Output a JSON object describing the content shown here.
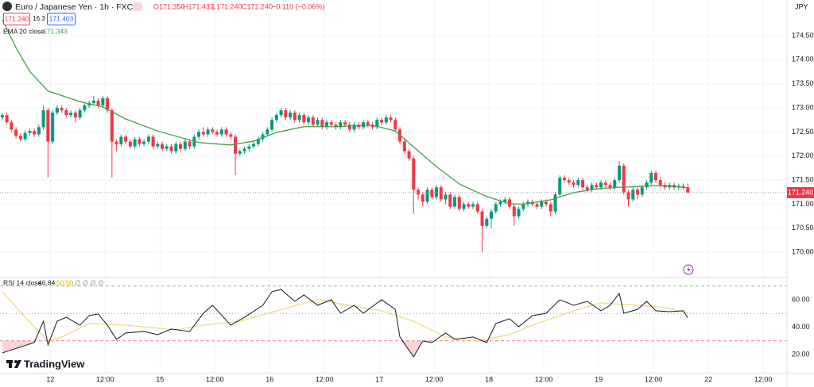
{
  "watermark": "TradingView",
  "chart_data": [
    {
      "type": "candlestick",
      "title": "Euro / Japanese Yen · 1h · FXCM",
      "bid": "171.240",
      "spread": "16.3",
      "ask": "171.403",
      "ohlc_labels": [
        "O171.350",
        "H171.432",
        "L171.240",
        "C171.240"
      ],
      "change_label": "−0.110 (−0.06%)",
      "currency": "JPY",
      "up_color": "#089981",
      "down_color": "#f23645",
      "open": [
        172.8,
        172.85,
        172.7,
        172.55,
        172.42,
        172.35,
        172.48,
        172.52,
        172.45,
        172.6,
        172.95,
        172.3,
        172.9,
        173.0,
        172.95,
        172.85,
        172.9,
        172.8,
        172.95,
        173.05,
        173.1,
        173.15,
        173.05,
        173.2,
        172.95,
        172.3,
        172.25,
        172.4,
        172.3,
        172.2,
        172.35,
        172.25,
        172.3,
        172.4,
        172.2,
        172.25,
        172.15,
        172.2,
        172.1,
        172.25,
        172.15,
        172.3,
        172.2,
        172.4,
        172.5,
        172.45,
        172.55,
        172.5,
        172.45,
        172.55,
        172.45,
        172.4,
        172.05,
        172.1,
        172.15,
        172.2,
        172.25,
        172.35,
        172.45,
        172.55,
        172.75,
        172.85,
        172.95,
        172.8,
        172.9,
        172.75,
        172.85,
        172.7,
        172.8,
        172.65,
        172.75,
        172.6,
        172.7,
        172.65,
        172.6,
        172.7,
        172.65,
        172.55,
        172.65,
        172.6,
        172.7,
        172.65,
        172.6,
        172.75,
        172.7,
        172.8,
        172.75,
        172.55,
        172.3,
        172.1,
        171.95,
        171.3,
        171.2,
        171.05,
        171.3,
        171.15,
        171.35,
        171.1,
        171.2,
        170.95,
        171.15,
        170.9,
        171.0,
        170.95,
        171.0,
        170.85,
        170.55,
        170.7,
        170.85,
        171.0,
        171.05,
        171.1,
        170.95,
        170.75,
        170.9,
        171.0,
        171.05,
        171.0,
        170.95,
        171.05,
        171.0,
        170.85,
        171.2,
        171.55,
        171.5,
        171.45,
        171.4,
        171.5,
        171.35,
        171.3,
        171.4,
        171.35,
        171.45,
        171.4,
        171.35,
        171.5,
        171.8,
        171.25,
        171.1,
        171.3,
        171.2,
        171.35,
        171.45,
        171.65,
        171.5,
        171.4,
        171.35,
        171.4,
        171.35,
        171.38,
        171.35
      ],
      "high": [
        172.9,
        172.9,
        172.75,
        172.6,
        172.47,
        172.53,
        172.57,
        172.57,
        172.65,
        173.05,
        173.0,
        172.95,
        173.05,
        173.05,
        173.0,
        172.95,
        172.95,
        173.0,
        173.1,
        173.15,
        173.25,
        173.2,
        173.25,
        173.25,
        173.0,
        172.35,
        172.45,
        172.45,
        172.35,
        172.4,
        172.4,
        172.35,
        172.45,
        172.45,
        172.3,
        172.3,
        172.25,
        172.25,
        172.3,
        172.3,
        172.35,
        172.35,
        172.45,
        172.55,
        172.6,
        172.6,
        172.6,
        172.55,
        172.6,
        172.6,
        172.5,
        172.45,
        172.15,
        172.2,
        172.25,
        172.3,
        172.4,
        172.5,
        172.6,
        172.8,
        172.9,
        173.0,
        173.0,
        172.95,
        172.95,
        172.9,
        172.9,
        172.85,
        172.85,
        172.8,
        172.8,
        172.75,
        172.75,
        172.7,
        172.75,
        172.75,
        172.7,
        172.7,
        172.7,
        172.75,
        172.75,
        172.7,
        172.8,
        172.8,
        172.85,
        172.85,
        172.8,
        172.6,
        172.35,
        172.15,
        172.0,
        171.35,
        171.25,
        171.35,
        171.35,
        171.4,
        171.4,
        171.25,
        171.25,
        171.2,
        171.2,
        171.05,
        171.05,
        171.05,
        171.05,
        170.9,
        170.75,
        170.9,
        171.05,
        171.1,
        171.15,
        171.15,
        171.0,
        170.95,
        171.05,
        171.1,
        171.1,
        171.05,
        171.1,
        171.1,
        171.05,
        171.25,
        171.6,
        171.6,
        171.55,
        171.5,
        171.55,
        171.55,
        171.4,
        171.45,
        171.45,
        171.5,
        171.5,
        171.45,
        171.55,
        171.9,
        171.85,
        171.3,
        171.35,
        171.35,
        171.4,
        171.5,
        171.7,
        171.7,
        171.55,
        171.45,
        171.45,
        171.45,
        171.43,
        171.43,
        171.432
      ],
      "low": [
        172.75,
        172.65,
        172.5,
        172.37,
        172.3,
        172.3,
        172.43,
        172.4,
        172.4,
        172.55,
        171.55,
        172.25,
        172.85,
        172.9,
        172.8,
        172.8,
        172.7,
        172.75,
        172.9,
        173.0,
        173.05,
        173.0,
        173.0,
        172.9,
        171.55,
        172.1,
        172.2,
        172.25,
        172.15,
        172.15,
        172.2,
        172.2,
        172.25,
        172.15,
        172.15,
        172.1,
        172.1,
        172.05,
        172.05,
        172.1,
        172.1,
        172.15,
        172.15,
        172.35,
        172.4,
        172.4,
        172.45,
        172.4,
        172.4,
        172.4,
        172.35,
        171.6,
        172.0,
        172.05,
        172.1,
        172.15,
        172.2,
        172.3,
        172.4,
        172.5,
        172.7,
        172.8,
        172.75,
        172.75,
        172.7,
        172.7,
        172.65,
        172.65,
        172.6,
        172.6,
        172.55,
        172.55,
        172.6,
        172.55,
        172.55,
        172.6,
        172.5,
        172.5,
        172.55,
        172.55,
        172.6,
        172.55,
        172.55,
        172.65,
        172.65,
        172.7,
        172.5,
        172.25,
        172.05,
        171.9,
        170.8,
        171.1,
        170.95,
        171.0,
        171.1,
        171.1,
        171.05,
        171.0,
        170.9,
        170.9,
        170.85,
        170.85,
        170.9,
        170.9,
        170.8,
        170.0,
        170.5,
        170.5,
        170.8,
        170.95,
        171.0,
        170.9,
        170.55,
        170.7,
        170.85,
        170.95,
        170.95,
        170.9,
        170.9,
        170.95,
        170.75,
        170.8,
        171.15,
        171.45,
        171.4,
        171.35,
        171.35,
        171.3,
        171.25,
        171.25,
        171.3,
        171.3,
        171.35,
        171.3,
        171.3,
        171.45,
        171.2,
        170.95,
        171.05,
        171.1,
        171.15,
        171.3,
        171.4,
        171.45,
        171.35,
        171.3,
        171.3,
        171.3,
        171.3,
        171.3,
        171.24
      ],
      "close": [
        172.85,
        172.7,
        172.55,
        172.42,
        172.35,
        172.48,
        172.52,
        172.45,
        172.6,
        172.95,
        172.3,
        172.9,
        173.0,
        172.95,
        172.85,
        172.9,
        172.8,
        172.95,
        173.05,
        173.1,
        173.15,
        173.05,
        173.2,
        172.95,
        172.3,
        172.25,
        172.4,
        172.3,
        172.2,
        172.35,
        172.25,
        172.3,
        172.4,
        172.2,
        172.25,
        172.15,
        172.2,
        172.1,
        172.25,
        172.15,
        172.3,
        172.2,
        172.4,
        172.5,
        172.45,
        172.55,
        172.5,
        172.45,
        172.55,
        172.45,
        172.4,
        172.05,
        172.1,
        172.15,
        172.2,
        172.25,
        172.35,
        172.45,
        172.55,
        172.75,
        172.85,
        172.95,
        172.8,
        172.9,
        172.75,
        172.85,
        172.7,
        172.8,
        172.65,
        172.75,
        172.6,
        172.7,
        172.65,
        172.6,
        172.7,
        172.65,
        172.55,
        172.65,
        172.6,
        172.7,
        172.65,
        172.6,
        172.75,
        172.7,
        172.8,
        172.75,
        172.55,
        172.3,
        172.1,
        171.95,
        171.3,
        171.2,
        171.05,
        171.3,
        171.15,
        171.35,
        171.1,
        171.2,
        170.95,
        171.15,
        170.9,
        171.0,
        170.95,
        171.0,
        170.85,
        170.55,
        170.7,
        170.85,
        171.0,
        171.05,
        171.1,
        170.95,
        170.75,
        170.9,
        171.0,
        171.05,
        171.0,
        170.95,
        171.05,
        171.0,
        170.85,
        171.2,
        171.55,
        171.5,
        171.45,
        171.4,
        171.5,
        171.35,
        171.3,
        171.4,
        171.35,
        171.45,
        171.4,
        171.35,
        171.5,
        171.8,
        171.25,
        171.1,
        171.3,
        171.2,
        171.35,
        171.45,
        171.65,
        171.5,
        171.4,
        171.35,
        171.4,
        171.35,
        171.38,
        171.35,
        171.24
      ],
      "series": [
        {
          "name": "EMA 20 close",
          "color": "#43a047",
          "value_label": "171.343",
          "x": [
            0,
            3,
            6,
            10,
            17,
            22,
            27,
            34,
            43,
            50,
            55,
            60,
            66,
            73,
            81,
            86,
            90,
            95,
            100,
            106,
            111,
            114,
            120,
            125,
            130,
            135,
            140,
            144,
            150
          ],
          "values": [
            174.83,
            174.25,
            173.76,
            173.35,
            173.13,
            173.02,
            172.77,
            172.52,
            172.28,
            172.23,
            172.31,
            172.49,
            172.61,
            172.61,
            172.64,
            172.52,
            172.19,
            171.78,
            171.42,
            171.16,
            171.01,
            171.0,
            171.09,
            171.24,
            171.32,
            171.35,
            171.37,
            171.39,
            171.343
          ]
        }
      ],
      "last_price": {
        "value": 171.24,
        "label": "171.240"
      },
      "xlim": [
        -0.5,
        171.7
      ],
      "xticks": [
        {
          "value": 10.5,
          "label": "12"
        },
        {
          "value": 22.5,
          "label": "12:00"
        },
        {
          "value": 34.5,
          "label": "15"
        },
        {
          "value": 46.5,
          "label": "12:00"
        },
        {
          "value": 58.5,
          "label": "16"
        },
        {
          "value": 70.5,
          "label": "12:00"
        },
        {
          "value": 82.5,
          "label": "17"
        },
        {
          "value": 94.5,
          "label": "12:00"
        },
        {
          "value": 106.5,
          "label": "18"
        },
        {
          "value": 118.5,
          "label": "12:00"
        },
        {
          "value": 130.5,
          "label": "19"
        },
        {
          "value": 142.5,
          "label": "12:00"
        },
        {
          "value": 154.5,
          "label": "22"
        },
        {
          "value": 166.5,
          "label": "12:00"
        }
      ],
      "ylim": [
        169.51,
        175.24
      ],
      "yticks": [
        {
          "value": 170,
          "label": "170.000"
        },
        {
          "value": 170.5,
          "label": "170.500"
        },
        {
          "value": 171,
          "label": "171.000"
        },
        {
          "value": 171.5,
          "label": "171.500"
        },
        {
          "value": 172,
          "label": "172.000"
        },
        {
          "value": 172.5,
          "label": "172.500"
        },
        {
          "value": 173,
          "label": "173.000"
        },
        {
          "value": 173.5,
          "label": "173.500"
        },
        {
          "value": 174,
          "label": "174.000"
        },
        {
          "value": 174.5,
          "label": "174.500"
        }
      ],
      "grid": true
    },
    {
      "type": "line",
      "title": "RSI 14 close",
      "extra_label": "∅ ∅ ∅ ∅",
      "xlim": [
        -0.5,
        171.7
      ],
      "ylim": [
        6.7,
        75
      ],
      "yticks": [
        {
          "value": 20,
          "label": "20.00"
        },
        {
          "value": 40,
          "label": "40.00"
        },
        {
          "value": 60,
          "label": "60.00"
        }
      ],
      "bands": [
        70,
        50,
        30
      ],
      "series": [
        {
          "color": "#131722",
          "value_label": "46.84",
          "x": [
            0,
            7,
            9,
            10,
            12,
            14,
            17,
            19,
            21,
            23,
            25,
            27,
            31,
            34,
            37,
            41,
            44,
            46,
            50,
            53,
            57,
            59,
            61,
            64,
            66,
            69,
            72,
            74,
            77,
            79,
            83,
            86,
            87,
            90,
            92,
            94,
            97,
            99,
            103,
            106,
            108,
            111,
            113,
            116,
            119,
            122,
            125,
            128,
            131,
            133,
            135,
            136,
            139,
            141,
            143,
            146,
            149,
            150
          ],
          "values": [
            21.2,
            28.7,
            44.3,
            27.0,
            44.3,
            47.2,
            41.4,
            48.4,
            49.6,
            41.4,
            31.0,
            35.7,
            36.8,
            34.5,
            38.6,
            36.8,
            50.1,
            55.9,
            41.4,
            47.2,
            55.9,
            65.8,
            67.5,
            58.8,
            63.5,
            55.9,
            60.0,
            50.1,
            55.9,
            50.1,
            60.0,
            53.0,
            32.8,
            18.3,
            29.9,
            28.7,
            35.7,
            31.0,
            32.8,
            28.7,
            42.6,
            46.1,
            40.3,
            48.4,
            50.1,
            60.0,
            55.9,
            58.8,
            51.9,
            55.9,
            64.6,
            50.1,
            53.0,
            58.8,
            51.9,
            51.3,
            51.9,
            46.84
          ]
        },
        {
          "color": "#f2d675",
          "value_label": "50.50",
          "x": [
            0,
            5,
            10,
            13,
            19,
            27,
            38,
            44,
            52,
            60,
            69,
            76,
            83,
            90,
            97,
            104,
            111,
            117,
            125,
            131,
            139,
            145,
            150
          ],
          "values": [
            65.8,
            47.2,
            29.9,
            32.8,
            42.6,
            41.4,
            38.0,
            41.4,
            44.3,
            51.9,
            60.0,
            55.9,
            51.9,
            44.3,
            32.8,
            29.9,
            34.5,
            42.6,
            51.9,
            57.7,
            55.9,
            54.2,
            50.5
          ]
        }
      ]
    }
  ]
}
